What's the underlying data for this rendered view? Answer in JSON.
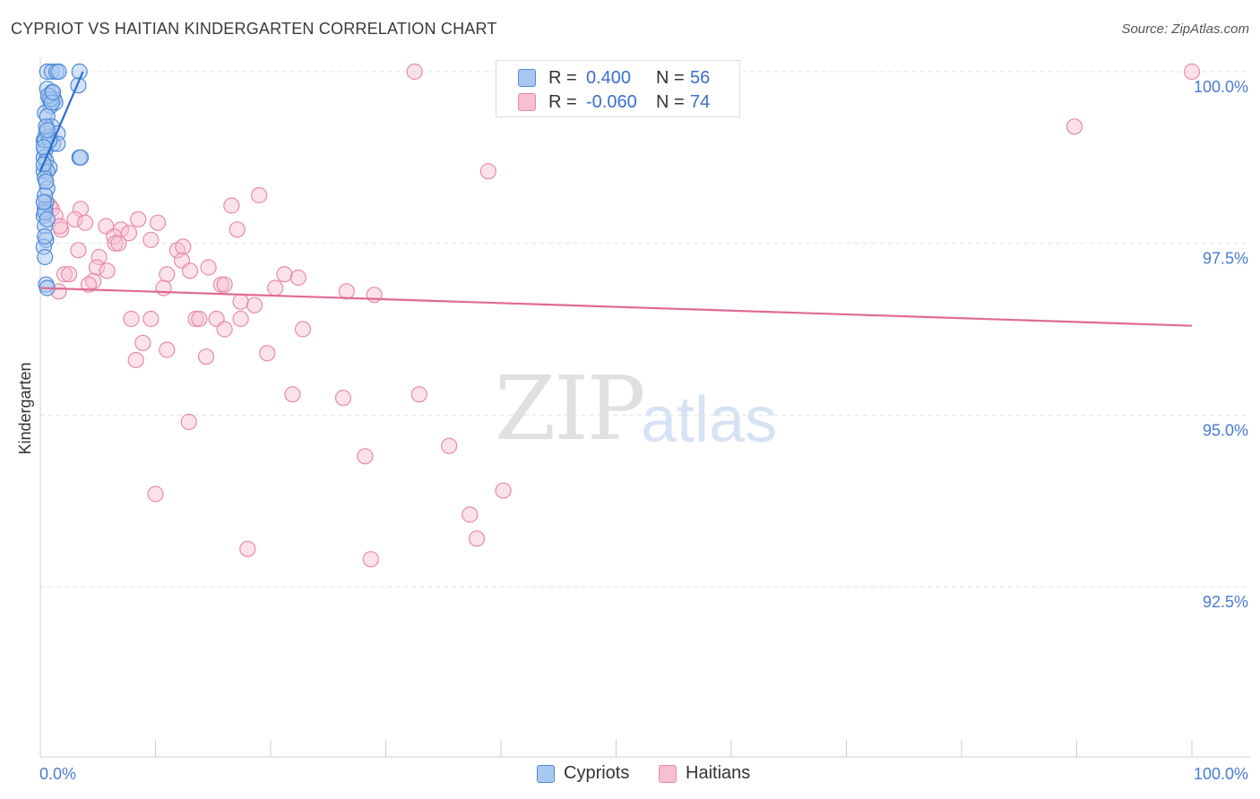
{
  "title": "CYPRIOT VS HAITIAN KINDERGARTEN CORRELATION CHART",
  "source": "Source: ZipAtlas.com",
  "watermark": {
    "zip": "ZIP",
    "atlas": "atlas"
  },
  "legend": {
    "rows": [
      {
        "r_label": "R =",
        "r_value": "0.400",
        "n_label": "N =",
        "n_value": "56"
      },
      {
        "r_label": "R =",
        "r_value": "-0.060",
        "n_label": "N =",
        "n_value": "74"
      }
    ]
  },
  "bottom_legend": {
    "cypriots": "Cypriots",
    "haitians": "Haitians"
  },
  "colors": {
    "cypriot_fill": "#a9c8f0",
    "cypriot_stroke": "#4f8ad8",
    "cypriot_line": "#2a6dd0",
    "haitian_fill": "#f7bfd0",
    "haitian_stroke": "#e88aa8",
    "haitian_line": "#e06a95",
    "grid": "#e3e3e3",
    "tick_label": "#4a7bd0"
  },
  "chart_data": {
    "type": "scatter",
    "title": "CYPRIOT VS HAITIAN KINDERGARTEN CORRELATION CHART",
    "xlabel": "",
    "ylabel": "Kindergarten",
    "xlim": [
      0,
      100
    ],
    "ylim": [
      90.0,
      100.2
    ],
    "x_tick_labels": [
      "0.0%",
      "100.0%"
    ],
    "y_ticks": [
      {
        "value": 100.0,
        "label": "100.0%"
      },
      {
        "value": 97.5,
        "label": "97.5%"
      },
      {
        "value": 95.0,
        "label": "95.0%"
      },
      {
        "value": 92.5,
        "label": "92.5%"
      }
    ],
    "series": [
      {
        "name": "Cypriots",
        "r": 0.4,
        "n": 56,
        "trend": {
          "x": [
            0.0,
            3.7
          ],
          "y": [
            98.55,
            100.0
          ]
        },
        "points": [
          [
            0.6,
            100.0
          ],
          [
            1.0,
            100.0
          ],
          [
            1.4,
            100.0
          ],
          [
            1.6,
            100.0
          ],
          [
            3.4,
            100.0
          ],
          [
            3.3,
            99.8
          ],
          [
            0.6,
            99.75
          ],
          [
            1.0,
            99.7
          ],
          [
            0.8,
            99.6
          ],
          [
            1.2,
            99.6
          ],
          [
            0.9,
            99.5
          ],
          [
            1.3,
            99.55
          ],
          [
            0.4,
            99.4
          ],
          [
            0.6,
            99.35
          ],
          [
            0.5,
            99.1
          ],
          [
            1.0,
            99.2
          ],
          [
            0.7,
            99.05
          ],
          [
            1.5,
            99.1
          ],
          [
            0.3,
            99.0
          ],
          [
            1.1,
            98.95
          ],
          [
            1.5,
            98.95
          ],
          [
            0.4,
            98.85
          ],
          [
            0.3,
            98.75
          ],
          [
            3.4,
            98.75
          ],
          [
            3.5,
            98.75
          ],
          [
            0.5,
            98.7
          ],
          [
            0.8,
            98.6
          ],
          [
            0.3,
            98.55
          ],
          [
            0.6,
            98.55
          ],
          [
            0.4,
            98.45
          ],
          [
            0.6,
            98.3
          ],
          [
            0.5,
            98.1
          ],
          [
            0.4,
            98.0
          ],
          [
            0.3,
            97.9
          ],
          [
            0.4,
            97.75
          ],
          [
            0.5,
            97.55
          ],
          [
            0.3,
            97.45
          ],
          [
            0.4,
            97.3
          ],
          [
            0.5,
            96.9
          ],
          [
            0.6,
            96.85
          ],
          [
            0.4,
            99.0
          ],
          [
            0.9,
            99.6
          ],
          [
            0.5,
            99.2
          ],
          [
            0.7,
            99.65
          ],
          [
            1.0,
            99.55
          ],
          [
            0.4,
            98.2
          ],
          [
            0.3,
            98.65
          ],
          [
            0.8,
            99.0
          ],
          [
            0.6,
            99.15
          ],
          [
            1.1,
            99.7
          ],
          [
            0.3,
            98.9
          ],
          [
            0.5,
            98.4
          ],
          [
            0.4,
            97.95
          ],
          [
            0.3,
            98.1
          ],
          [
            0.6,
            97.85
          ],
          [
            0.4,
            97.6
          ]
        ]
      },
      {
        "name": "Haitians",
        "r": -0.06,
        "n": 74,
        "trend": {
          "x": [
            0.0,
            100.0
          ],
          "y": [
            96.85,
            96.3
          ]
        },
        "points": [
          [
            32.5,
            100.0
          ],
          [
            100.0,
            100.0
          ],
          [
            89.8,
            99.2
          ],
          [
            38.9,
            98.55
          ],
          [
            19.0,
            98.2
          ],
          [
            16.6,
            98.05
          ],
          [
            0.8,
            98.05
          ],
          [
            1.0,
            98.0
          ],
          [
            3.5,
            98.0
          ],
          [
            1.3,
            97.9
          ],
          [
            3.0,
            97.85
          ],
          [
            3.9,
            97.8
          ],
          [
            8.5,
            97.85
          ],
          [
            10.2,
            97.8
          ],
          [
            5.7,
            97.75
          ],
          [
            7.0,
            97.7
          ],
          [
            7.7,
            97.65
          ],
          [
            17.1,
            97.7
          ],
          [
            1.8,
            97.7
          ],
          [
            6.4,
            97.6
          ],
          [
            9.6,
            97.55
          ],
          [
            6.5,
            97.5
          ],
          [
            6.8,
            97.5
          ],
          [
            11.9,
            97.4
          ],
          [
            12.4,
            97.45
          ],
          [
            3.3,
            97.4
          ],
          [
            5.1,
            97.3
          ],
          [
            12.3,
            97.25
          ],
          [
            4.9,
            97.15
          ],
          [
            5.8,
            97.1
          ],
          [
            14.6,
            97.15
          ],
          [
            13.0,
            97.1
          ],
          [
            11.0,
            97.05
          ],
          [
            2.1,
            97.05
          ],
          [
            2.5,
            97.05
          ],
          [
            21.2,
            97.05
          ],
          [
            22.4,
            97.0
          ],
          [
            4.6,
            96.95
          ],
          [
            4.2,
            96.9
          ],
          [
            15.7,
            96.9
          ],
          [
            16.0,
            96.9
          ],
          [
            10.7,
            96.85
          ],
          [
            20.4,
            96.85
          ],
          [
            26.6,
            96.8
          ],
          [
            29.0,
            96.75
          ],
          [
            1.6,
            96.8
          ],
          [
            17.4,
            96.65
          ],
          [
            18.6,
            96.6
          ],
          [
            7.9,
            96.4
          ],
          [
            9.6,
            96.4
          ],
          [
            13.5,
            96.4
          ],
          [
            13.8,
            96.4
          ],
          [
            15.3,
            96.4
          ],
          [
            17.4,
            96.4
          ],
          [
            16.0,
            96.25
          ],
          [
            22.8,
            96.25
          ],
          [
            8.9,
            96.05
          ],
          [
            11.0,
            95.95
          ],
          [
            19.7,
            95.9
          ],
          [
            14.4,
            95.85
          ],
          [
            8.3,
            95.8
          ],
          [
            21.9,
            95.3
          ],
          [
            26.3,
            95.25
          ],
          [
            32.9,
            95.3
          ],
          [
            12.9,
            94.9
          ],
          [
            35.5,
            94.55
          ],
          [
            28.2,
            94.4
          ],
          [
            40.2,
            93.9
          ],
          [
            10.0,
            93.85
          ],
          [
            37.3,
            93.55
          ],
          [
            37.9,
            93.2
          ],
          [
            18.0,
            93.05
          ],
          [
            28.7,
            92.9
          ],
          [
            1.7,
            97.75
          ]
        ]
      }
    ]
  }
}
